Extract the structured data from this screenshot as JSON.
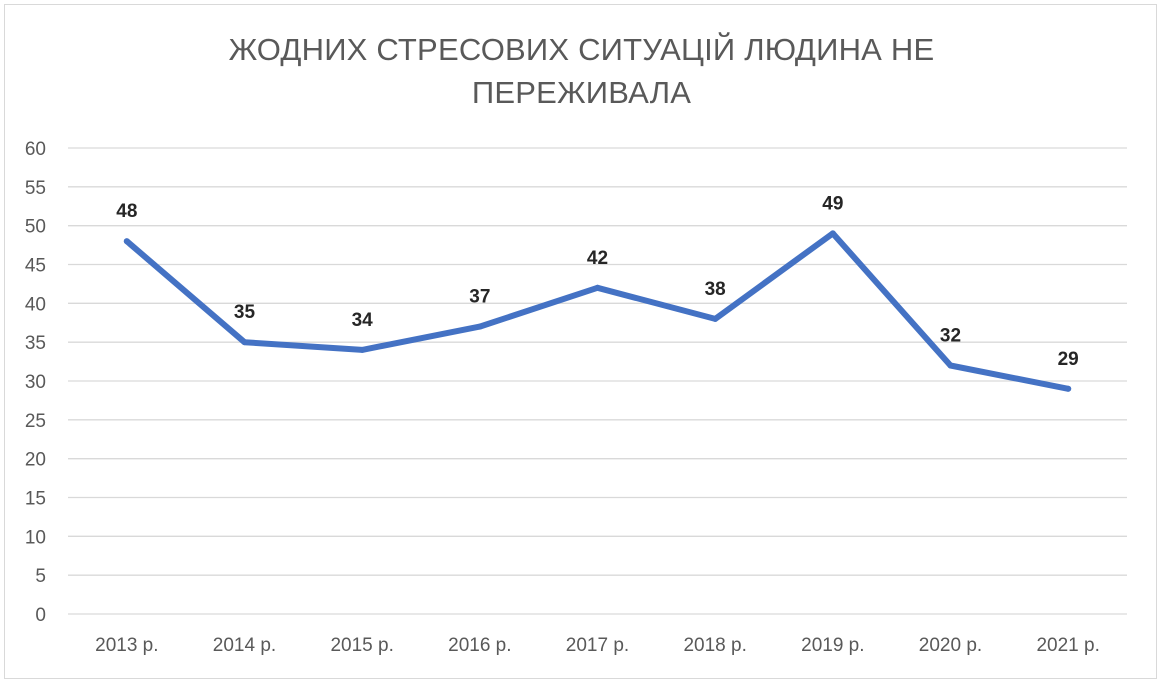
{
  "chart_data": {
    "type": "line",
    "title_lines": [
      "ЖОДНИХ СТРЕСОВИХ СИТУАЦІЙ ЛЮДИНА НЕ",
      "ПЕРЕЖИВАЛА"
    ],
    "categories": [
      "2013 р.",
      "2014 р.",
      "2015 р.",
      "2016 р.",
      "2017 р.",
      "2018 р.",
      "2019 р.",
      "2020 р.",
      "2021 р."
    ],
    "series": [
      {
        "values": [
          48,
          35,
          34,
          37,
          42,
          38,
          49,
          32,
          29
        ],
        "color": "#4472c4"
      }
    ],
    "ylim": [
      0,
      60
    ],
    "ytick_step": 5,
    "grid": true,
    "data_labels": true,
    "legend": "none",
    "colors": {
      "line": "#4472c4",
      "grid": "#d9d9d9",
      "tick_text": "#595959",
      "label_text": "#262626",
      "title_text": "#595959"
    }
  }
}
